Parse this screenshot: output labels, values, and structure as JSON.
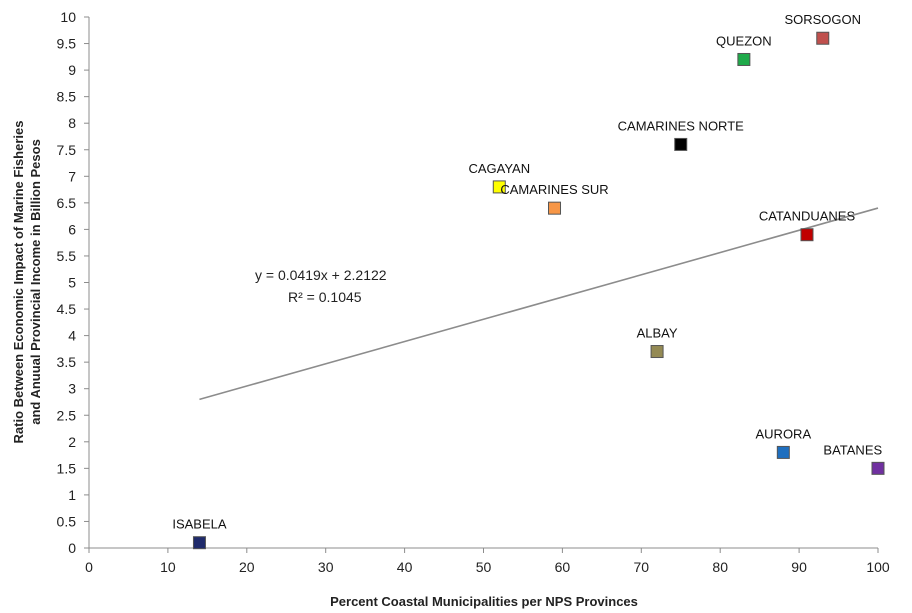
{
  "chart_data": {
    "type": "scatter",
    "xlabel": "Percent Coastal Municipalities per NPS Provinces",
    "ylabel_line1": "Ratio Between Economic Impact of Marine Fisheries",
    "ylabel_line2": "and Anuual Provincial Income in Billion Pesos",
    "xlim": [
      0,
      100
    ],
    "ylim": [
      0,
      10
    ],
    "x_ticks": [
      "0",
      "10",
      "20",
      "30",
      "40",
      "50",
      "60",
      "70",
      "80",
      "90",
      "100"
    ],
    "y_ticks": [
      "0",
      "0.5",
      "1",
      "1.5",
      "2",
      "2.5",
      "3",
      "3.5",
      "4",
      "4.5",
      "5",
      "5.5",
      "6",
      "6.5",
      "7",
      "7.5",
      "8",
      "8.5",
      "9",
      "9.5",
      "10"
    ],
    "grid": false,
    "points": [
      {
        "label": "SORSOGON",
        "x": 93,
        "y": 9.6,
        "color": "#c0504d"
      },
      {
        "label": "QUEZON",
        "x": 83,
        "y": 9.2,
        "color": "#1faa4a"
      },
      {
        "label": "CAMARINES NORTE",
        "x": 75,
        "y": 7.6,
        "color": "#000000"
      },
      {
        "label": "CAGAYAN",
        "x": 52,
        "y": 6.8,
        "color": "#ffff00"
      },
      {
        "label": "CAMARINES SUR",
        "x": 59,
        "y": 6.4,
        "color": "#f79646"
      },
      {
        "label": "CATANDUANES",
        "x": 91,
        "y": 5.9,
        "color": "#c00000"
      },
      {
        "label": "ALBAY",
        "x": 72,
        "y": 3.7,
        "color": "#948a54"
      },
      {
        "label": "AURORA",
        "x": 88,
        "y": 1.8,
        "color": "#1f6fbf"
      },
      {
        "label": "BATANES",
        "x": 100,
        "y": 1.5,
        "color": "#7030a0"
      },
      {
        "label": "ISABELA",
        "x": 14,
        "y": 0.1,
        "color": "#1f2a6b"
      }
    ],
    "trendline": {
      "slope": 0.0419,
      "intercept": 2.2122,
      "x_start": 14,
      "x_end": 100
    },
    "equation_text": "y = 0.0419x + 2.2122",
    "r2_text": "R² = 0.1045"
  }
}
